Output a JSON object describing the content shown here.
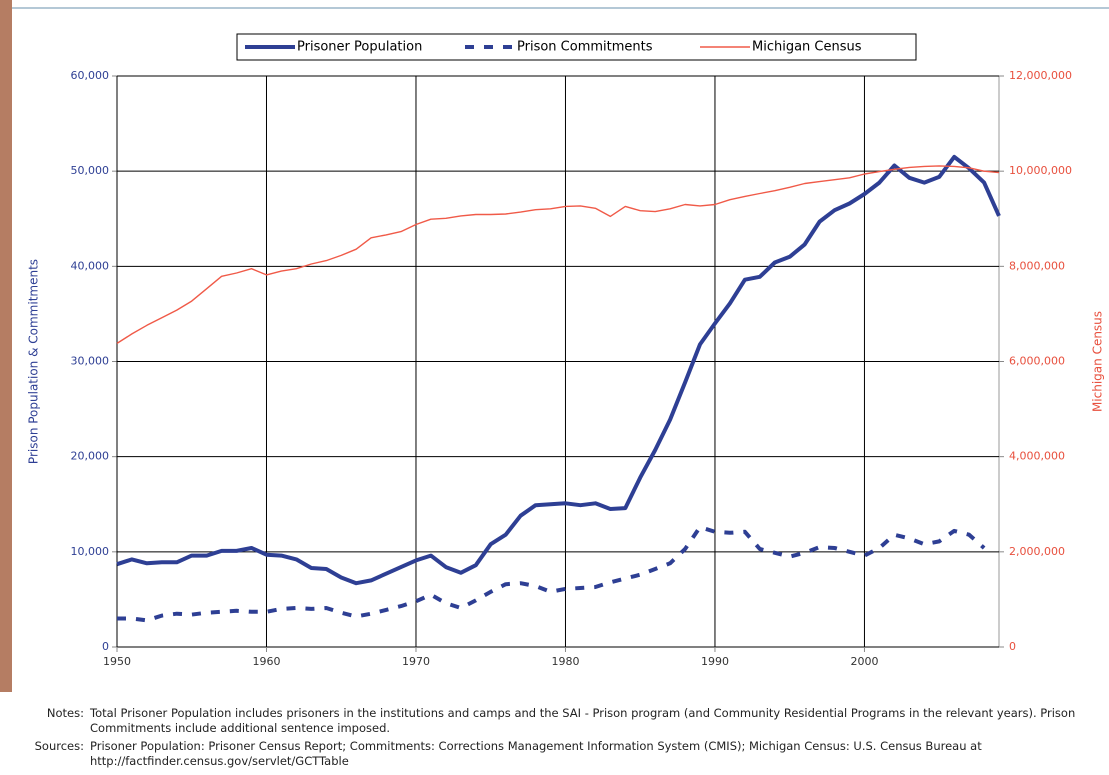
{
  "chart_data": {
    "type": "line",
    "y_label": "Prison Population & Commitments",
    "y2_label": "Michigan Census",
    "x": [
      1950,
      1951,
      1952,
      1953,
      1954,
      1955,
      1956,
      1957,
      1958,
      1959,
      1960,
      1961,
      1962,
      1963,
      1964,
      1965,
      1966,
      1967,
      1968,
      1969,
      1970,
      1971,
      1972,
      1973,
      1974,
      1975,
      1976,
      1977,
      1978,
      1979,
      1980,
      1981,
      1982,
      1983,
      1984,
      1985,
      1986,
      1987,
      1988,
      1989,
      1990,
      1991,
      1992,
      1993,
      1994,
      1995,
      1996,
      1997,
      1998,
      1999,
      2000,
      2001,
      2002,
      2003,
      2004,
      2005,
      2006,
      2007,
      2008,
      2009
    ],
    "xlim": [
      1950,
      2009
    ],
    "xticks": [
      1950,
      1960,
      1970,
      1980,
      1990,
      2000
    ],
    "ylim": [
      0,
      60000
    ],
    "yticks": [
      0,
      {
        "value": 10000,
        "label": "10,000"
      },
      {
        "value": 20000,
        "label": "20,000"
      },
      {
        "value": 30000,
        "label": "30,000"
      },
      {
        "value": 40000,
        "label": "40,000"
      },
      {
        "value": 50000,
        "label": "50,000"
      },
      {
        "value": 60000,
        "label": "60,000"
      }
    ],
    "y2lim": [
      0,
      12000000
    ],
    "y2ticks": [
      0,
      {
        "value": 2000000,
        "label": "2,000,000"
      },
      {
        "value": 4000000,
        "label": "4,000,000"
      },
      {
        "value": 6000000,
        "label": "6,000,000"
      },
      {
        "value": 8000000,
        "label": "8,000,000"
      },
      {
        "value": 10000000,
        "label": "10,000,000"
      },
      {
        "value": 12000000,
        "label": "12,000,000"
      }
    ],
    "grid": true,
    "legend": "top",
    "series": [
      {
        "name": "Prisoner Population",
        "color": "#2e3f94",
        "line_style": "solid",
        "values": [
          8700,
          9200,
          8800,
          8900,
          8900,
          9600,
          9600,
          10100,
          10100,
          10400,
          9700,
          9600,
          9200,
          8300,
          8200,
          7300,
          6700,
          7000,
          7700,
          8400,
          9100,
          9600,
          8400,
          7800,
          8600,
          10800,
          11800,
          13800,
          14900,
          15000,
          15100,
          14900,
          15100,
          14500,
          14600,
          17800,
          20700,
          23900,
          27800,
          31800,
          34000,
          36100,
          38600,
          38900,
          40400,
          41000,
          42300,
          44700,
          45900,
          46600,
          47600,
          48800,
          50600,
          49300,
          48800,
          49400,
          51500,
          50300,
          48800,
          45300
        ]
      },
      {
        "name": "Prison Commitments",
        "color": "#2e3f94",
        "line_style": "dashed",
        "values": [
          3000,
          3000,
          2800,
          3300,
          3500,
          3400,
          3600,
          3700,
          3800,
          3700,
          3700,
          4000,
          4100,
          4000,
          4100,
          3600,
          3200,
          3500,
          3900,
          4300,
          4800,
          5500,
          4600,
          4100,
          4900,
          5800,
          6600,
          6700,
          6400,
          5800,
          6100,
          6200,
          6300,
          6800,
          7200,
          7600,
          8200,
          8800,
          10300,
          12600,
          12100,
          12000,
          12100,
          10300,
          9900,
          9500,
          9900,
          10500,
          10400,
          10000,
          9600,
          10400,
          11800,
          11400,
          10800,
          11100,
          12200,
          11800,
          10400,
          null
        ]
      },
      {
        "name": "Michigan Census",
        "color": "#f05a48",
        "line_style": "solid",
        "axis": "y2",
        "values": [
          6380000,
          6580000,
          6760000,
          6920000,
          7080000,
          7270000,
          7530000,
          7790000,
          7860000,
          7950000,
          7820000,
          7900000,
          7950000,
          8050000,
          8120000,
          8230000,
          8360000,
          8600000,
          8660000,
          8730000,
          8880000,
          8990000,
          9010000,
          9060000,
          9090000,
          9090000,
          9100000,
          9140000,
          9190000,
          9210000,
          9260000,
          9270000,
          9220000,
          9050000,
          9260000,
          9170000,
          9150000,
          9210000,
          9300000,
          9270000,
          9300000,
          9400000,
          9470000,
          9530000,
          9590000,
          9660000,
          9740000,
          9780000,
          9820000,
          9860000,
          9940000,
          9990000,
          10040000,
          10080000,
          10100000,
          10110000,
          10100000,
          10070000,
          10000000,
          9970000
        ]
      }
    ]
  },
  "notes": {
    "label": "Notes:",
    "text": "Total Prisoner Population includes prisoners in the institutions and camps and the SAI - Prison program (and Community Residential Programs in the relevant years).  Prison Commitments include additional sentence imposed."
  },
  "sources": {
    "label": "Sources:",
    "text": "Prisoner Population: Prisoner Census Report; Commitments: Corrections Management Information System (CMIS); Michigan Census:  U.S. Census Bureau at http://factfinder.census.gov/servlet/GCTTable"
  }
}
